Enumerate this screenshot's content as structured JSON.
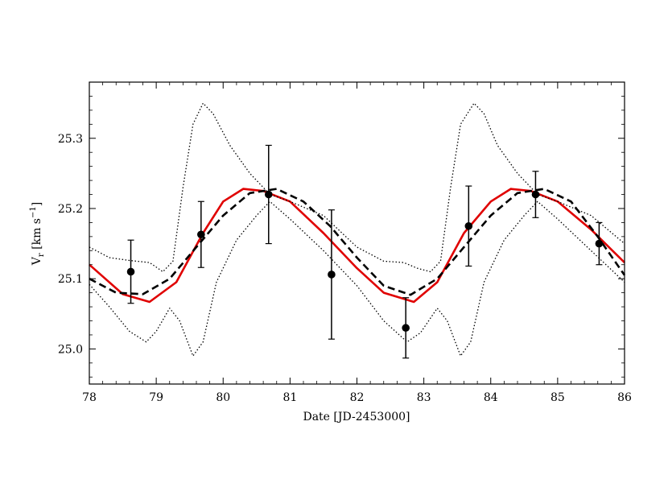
{
  "chart_data": {
    "type": "scatter",
    "title": "",
    "xlabel": "Date [JD-2453000]",
    "ylabel_main": "V",
    "ylabel_sub": "r",
    "ylabel_rest": " [km s",
    "ylabel_sup": "−1",
    "ylabel_close": "]",
    "xlim": [
      78,
      86
    ],
    "ylim": [
      24.95,
      25.38
    ],
    "xticks": [
      78,
      79,
      80,
      81,
      82,
      83,
      84,
      85,
      86
    ],
    "xtick_labels": [
      "78",
      "79",
      "80",
      "81",
      "82",
      "83",
      "84",
      "85",
      "86"
    ],
    "yticks": [
      25.0,
      25.1,
      25.2,
      25.3
    ],
    "ytick_labels": [
      "25.0",
      "25.1",
      "25.2",
      "25.3"
    ],
    "grid": false,
    "points": {
      "x": [
        78.62,
        79.67,
        80.68,
        81.62,
        82.73,
        83.67,
        84.67,
        85.62
      ],
      "y": [
        25.11,
        25.163,
        25.22,
        25.106,
        25.03,
        25.175,
        25.22,
        25.15
      ],
      "yerr": [
        0.045,
        0.047,
        0.07,
        0.092,
        0.043,
        0.057,
        0.033,
        0.03
      ],
      "color": "#000000"
    },
    "series": [
      {
        "style": "solid",
        "color": "#e00000",
        "x": [
          78.0,
          78.5,
          78.9,
          79.3,
          79.7,
          80.0,
          80.3,
          80.6,
          81.0,
          81.5,
          82.0,
          82.4,
          82.85,
          83.2,
          83.6,
          84.0,
          84.3,
          84.6,
          85.0,
          85.5,
          86.0
        ],
        "y": [
          25.12,
          25.078,
          25.067,
          25.095,
          25.165,
          25.21,
          25.228,
          25.225,
          25.21,
          25.165,
          25.115,
          25.08,
          25.067,
          25.095,
          25.165,
          25.21,
          25.228,
          25.225,
          25.21,
          25.17,
          25.123
        ]
      },
      {
        "style": "dashed",
        "color": "#000000",
        "x": [
          78.0,
          78.4,
          78.8,
          79.2,
          79.6,
          80.0,
          80.4,
          80.8,
          81.2,
          81.6,
          82.0,
          82.4,
          82.8,
          83.2,
          83.6,
          84.0,
          84.4,
          84.8,
          85.2,
          85.6,
          86.0
        ],
        "y": [
          25.1,
          25.08,
          25.078,
          25.1,
          25.145,
          25.19,
          25.222,
          25.228,
          25.21,
          25.175,
          25.13,
          25.09,
          25.077,
          25.1,
          25.145,
          25.19,
          25.222,
          25.228,
          25.21,
          25.16,
          25.105
        ]
      },
      {
        "style": "dotted",
        "color": "#000000",
        "x": [
          78.0,
          78.3,
          78.6,
          78.9,
          79.1,
          79.25,
          79.4,
          79.55,
          79.7,
          79.85,
          80.1,
          80.4,
          80.7,
          81.0,
          81.5,
          82.0,
          82.4,
          82.7,
          82.9,
          83.1,
          83.25,
          83.4,
          83.55,
          83.75,
          83.9,
          84.1,
          84.4,
          84.7,
          85.0,
          85.5,
          86.0
        ],
        "y": [
          25.145,
          25.13,
          25.126,
          25.123,
          25.11,
          25.125,
          25.23,
          25.32,
          25.35,
          25.335,
          25.29,
          25.25,
          25.22,
          25.21,
          25.19,
          25.145,
          25.125,
          25.123,
          25.115,
          25.11,
          25.125,
          25.23,
          25.32,
          25.35,
          25.335,
          25.29,
          25.25,
          25.22,
          25.21,
          25.19,
          25.15
        ]
      },
      {
        "style": "dotted",
        "color": "#000000",
        "x": [
          78.0,
          78.3,
          78.6,
          78.85,
          79.0,
          79.2,
          79.35,
          79.55,
          79.7,
          79.9,
          80.2,
          80.5,
          80.7,
          81.0,
          81.5,
          82.0,
          82.4,
          82.75,
          82.95,
          83.2,
          83.35,
          83.55,
          83.7,
          83.9,
          84.2,
          84.5,
          84.7,
          85.0,
          85.5,
          86.0
        ],
        "y": [
          25.092,
          25.06,
          25.025,
          25.01,
          25.025,
          25.058,
          25.04,
          24.99,
          25.01,
          25.095,
          25.155,
          25.19,
          25.21,
          25.185,
          25.14,
          25.09,
          25.04,
          25.01,
          25.023,
          25.058,
          25.04,
          24.99,
          25.01,
          25.095,
          25.155,
          25.19,
          25.21,
          25.185,
          25.14,
          25.095
        ]
      }
    ]
  }
}
